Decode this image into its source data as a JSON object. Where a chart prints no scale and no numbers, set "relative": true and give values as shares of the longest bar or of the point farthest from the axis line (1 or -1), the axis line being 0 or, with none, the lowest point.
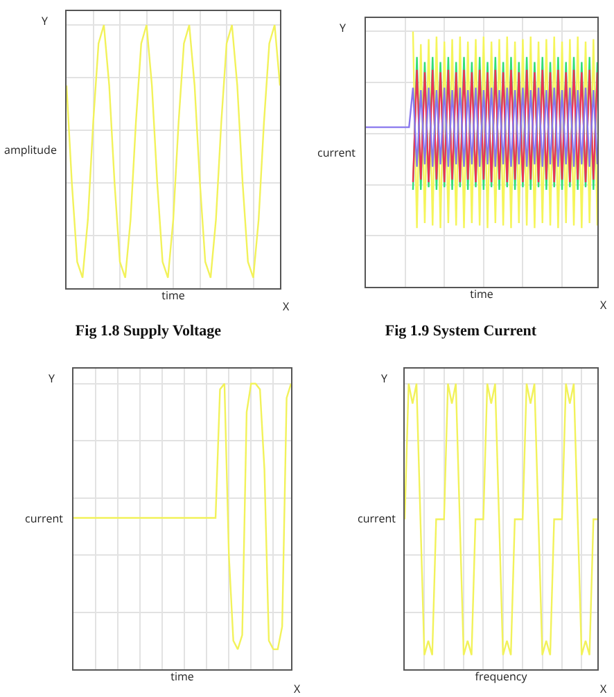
{
  "chart_data": [
    {
      "type": "line",
      "title": "Fig 1.8 Supply Voltage",
      "xlabel": "time",
      "ylabel": "amplitude",
      "annotations": [
        "Y",
        "X"
      ],
      "relative": true,
      "grid": true,
      "categories": [
        null,
        null,
        null,
        null,
        null,
        null,
        null,
        null,
        null,
        null,
        null,
        null,
        null,
        null,
        null,
        null,
        null,
        null,
        null,
        null,
        null,
        null,
        null,
        null,
        null,
        null,
        null,
        null,
        null,
        null,
        null,
        null,
        null,
        null,
        null,
        null,
        null,
        null,
        null,
        null,
        null
      ],
      "series": [
        {
          "color": "#f2f25a",
          "values": [
            0.77,
            0.4,
            0.1,
            0.04,
            0.26,
            0.63,
            0.93,
            1,
            0.77,
            0.4,
            0.1,
            0.04,
            0.26,
            0.63,
            0.93,
            1,
            0.77,
            0.4,
            0.1,
            0.04,
            0.26,
            0.63,
            0.93,
            1,
            0.77,
            0.4,
            0.1,
            0.04,
            0.26,
            0.63,
            0.93,
            1,
            0.77,
            0.4,
            0.1,
            0.04,
            0.26,
            0.63,
            0.93,
            1,
            0.77
          ]
        }
      ]
    },
    {
      "type": "line",
      "title": "Fig 1.9 System Current",
      "xlabel": "time",
      "ylabel": "current",
      "annotations": [
        "Y",
        "X"
      ],
      "relative": true,
      "grid": true,
      "categories": [
        null,
        null,
        null,
        null,
        null,
        null,
        null,
        null,
        null,
        null,
        null,
        null,
        null,
        null,
        null,
        null,
        null,
        null,
        null,
        null,
        null,
        null,
        null,
        null,
        null,
        null,
        null,
        null,
        null,
        null,
        null,
        null,
        null,
        null,
        null,
        null,
        null,
        null,
        null,
        null,
        null,
        null,
        null,
        null,
        null,
        null,
        null,
        null,
        null,
        null,
        null,
        null,
        null,
        null,
        null,
        null,
        null,
        null,
        null,
        null
      ],
      "series": [
        {
          "color": "#f5f55a",
          "values": [
            null,
            null,
            null,
            null,
            null,
            null,
            null,
            null,
            null,
            null,
            null,
            null,
            1,
            0.23,
            0.95,
            0.25,
            0.97,
            0.24,
            0.98,
            0.23,
            0.96,
            0.25,
            0.97,
            0.24,
            0.98,
            0.23,
            0.96,
            0.25,
            0.97,
            0.24,
            0.98,
            0.23,
            0.96,
            0.25,
            0.97,
            0.24,
            0.98,
            0.23,
            0.96,
            0.25,
            0.97,
            0.24,
            0.98,
            0.23,
            0.96,
            0.25,
            0.97,
            0.24,
            0.98,
            0.23,
            0.96,
            0.25,
            0.97,
            0.24,
            0.98,
            0.23,
            0.96,
            0.25,
            0.97,
            0.24
          ]
        },
        {
          "color": "#33dd77",
          "values": [
            null,
            null,
            null,
            null,
            null,
            null,
            null,
            null,
            null,
            null,
            null,
            null,
            0.38,
            0.9,
            0.38,
            0.88,
            0.39,
            0.9,
            0.38,
            0.88,
            0.39,
            0.9,
            0.38,
            0.88,
            0.39,
            0.9,
            0.38,
            0.88,
            0.39,
            0.9,
            0.38,
            0.88,
            0.39,
            0.9,
            0.38,
            0.88,
            0.39,
            0.9,
            0.38,
            0.88,
            0.39,
            0.9,
            0.38,
            0.88,
            0.39,
            0.9,
            0.38,
            0.88,
            0.39,
            0.9,
            0.38,
            0.88,
            0.39,
            0.9,
            0.38,
            0.88,
            0.39,
            0.9,
            0.38,
            0.88
          ]
        },
        {
          "color": "#ee3355",
          "values": [
            null,
            null,
            null,
            null,
            null,
            null,
            null,
            null,
            null,
            null,
            null,
            null,
            0.41,
            0.85,
            0.42,
            0.84,
            0.41,
            0.85,
            0.42,
            0.84,
            0.41,
            0.85,
            0.42,
            0.84,
            0.41,
            0.85,
            0.42,
            0.84,
            0.41,
            0.85,
            0.42,
            0.84,
            0.41,
            0.85,
            0.42,
            0.84,
            0.41,
            0.85,
            0.42,
            0.84,
            0.41,
            0.85,
            0.42,
            0.84,
            0.41,
            0.85,
            0.42,
            0.84,
            0.41,
            0.85,
            0.42,
            0.84,
            0.41,
            0.85,
            0.42,
            0.84,
            0.41,
            0.85,
            0.42,
            0.84
          ]
        },
        {
          "color": "#8877ee",
          "values": [
            0.625,
            0.625,
            0.625,
            0.625,
            0.625,
            0.625,
            0.625,
            0.625,
            0.625,
            0.625,
            0.625,
            0.625,
            0.78,
            0.47,
            0.77,
            0.48,
            0.78,
            0.47,
            0.77,
            0.48,
            0.78,
            0.47,
            0.77,
            0.48,
            0.78,
            0.47,
            0.77,
            0.48,
            0.78,
            0.47,
            0.77,
            0.48,
            0.78,
            0.47,
            0.77,
            0.48,
            0.78,
            0.47,
            0.77,
            0.48,
            0.78,
            0.47,
            0.77,
            0.48,
            0.78,
            0.47,
            0.77,
            0.48,
            0.78,
            0.47,
            0.77,
            0.48,
            0.78,
            0.47,
            0.77,
            0.48,
            0.78,
            0.47,
            0.77,
            0.48
          ]
        }
      ]
    },
    {
      "type": "line",
      "xlabel": "time",
      "ylabel": "current",
      "annotations": [
        "Y",
        "X"
      ],
      "relative": true,
      "grid": true,
      "categories": [
        null,
        null,
        null,
        null,
        null,
        null,
        null,
        null,
        null,
        null,
        null,
        null,
        null,
        null,
        null,
        null,
        null,
        null,
        null,
        null,
        null,
        null,
        null,
        null,
        null,
        null,
        null,
        null,
        null,
        null,
        null,
        null,
        null,
        null,
        null,
        null,
        null,
        null,
        null,
        null,
        null,
        null,
        null,
        null,
        null,
        null,
        null,
        null,
        null,
        null
      ],
      "series": [
        {
          "color": "#f2f25a",
          "values": [
            0.53,
            0.53,
            0.53,
            0.53,
            0.53,
            0.53,
            0.53,
            0.53,
            0.53,
            0.53,
            0.53,
            0.53,
            0.53,
            0.53,
            0.53,
            0.53,
            0.53,
            0.53,
            0.53,
            0.53,
            0.53,
            0.53,
            0.53,
            0.53,
            0.53,
            0.53,
            0.53,
            0.53,
            0.53,
            0.53,
            0.53,
            0.53,
            0.53,
            0.98,
            1,
            0.4,
            0.1,
            0.07,
            0.12,
            0.9,
            1,
            1,
            0.98,
            0.7,
            0.1,
            0.07,
            0.07,
            0.15,
            0.95,
            1
          ]
        }
      ]
    },
    {
      "type": "line",
      "xlabel": "frequency",
      "ylabel": "current",
      "annotations": [
        "Y",
        "X"
      ],
      "relative": true,
      "grid": true,
      "categories": [
        null,
        null,
        null,
        null,
        null,
        null,
        null,
        null,
        null,
        null,
        null,
        null,
        null,
        null,
        null,
        null,
        null,
        null,
        null,
        null,
        null,
        null,
        null,
        null,
        null,
        null,
        null,
        null,
        null,
        null,
        null,
        null,
        null,
        null,
        null,
        null,
        null,
        null,
        null,
        null,
        null,
        null,
        null,
        null,
        null,
        null,
        null,
        null,
        null,
        null
      ],
      "series": [
        {
          "color": "#f2f25a",
          "values": [
            0.525,
            1,
            0.93,
            1,
            0.525,
            0.05,
            0.1,
            0.05,
            0.525,
            0.525,
            0.525,
            1,
            0.93,
            1,
            0.525,
            0.05,
            0.1,
            0.05,
            0.525,
            0.525,
            0.525,
            1,
            0.93,
            1,
            0.525,
            0.05,
            0.1,
            0.05,
            0.525,
            0.525,
            0.525,
            1,
            0.93,
            1,
            0.525,
            0.05,
            0.1,
            0.05,
            0.525,
            0.525,
            0.525,
            1,
            0.93,
            1,
            0.525,
            0.05,
            0.1,
            0.05,
            0.525,
            0.525
          ]
        }
      ]
    }
  ]
}
